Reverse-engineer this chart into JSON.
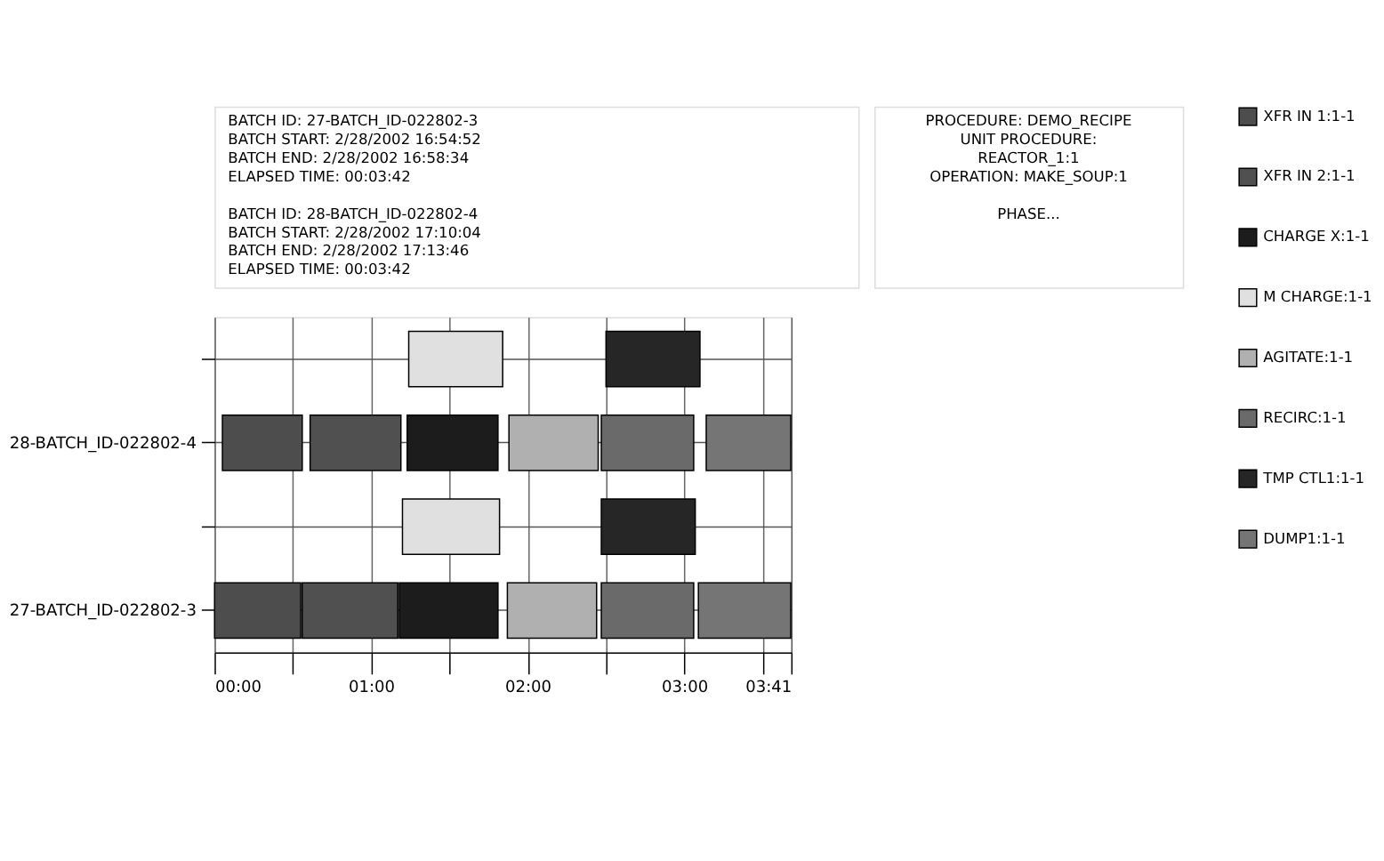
{
  "chart_data": {
    "type": "bar",
    "orientation": "horizontal",
    "grid": true,
    "legend": "right",
    "categories": [
      null,
      "28-BATCH_ID-022802-4",
      null,
      "27-BATCH_ID-022802-3"
    ],
    "xlim": [
      0,
      3.683
    ],
    "xticks": [
      {
        "value": 0,
        "label": "00:00"
      },
      {
        "value": 0.5,
        "label": null
      },
      {
        "value": 1,
        "label": "01:00"
      },
      {
        "value": 1.5,
        "label": null
      },
      {
        "value": 2,
        "label": "02:00"
      },
      {
        "value": 2.5,
        "label": null
      },
      {
        "value": 3,
        "label": "03:00"
      },
      {
        "value": 3.5,
        "label": null
      },
      {
        "value": 3.683,
        "label": "03:41"
      }
    ],
    "annotations": [
      "BATCH ID: 27-BATCH_ID-022802-3\nBATCH START: 2/28/2002 16:54:52\nBATCH END: 2/28/2002 16:58:34\nELAPSED TIME: 00:03:42",
      "BATCH ID: 28-BATCH_ID-022802-4\nBATCH START: 2/28/2002 17:10:04\nBATCH END: 2/28/2002 17:13:46\nELAPSED TIME: 00:03:42",
      "PROCEDURE: DEMO_RECIPE\nUNIT PROCEDURE:\nREACTOR_1:1\nOPERATION: MAKE_SOUP:1\n\nPHASE..."
    ],
    "series": [
      {
        "name": "XFR  IN 1:1-1",
        "color": "#4d4d4d",
        "values": [
          null,
          0.51,
          null,
          0.55
        ],
        "base": [
          null,
          0.05,
          null,
          0
        ]
      },
      {
        "name": "XFR  IN 2:1-1",
        "color": "#505050",
        "values": [
          null,
          0.58,
          null,
          0.61
        ],
        "base": [
          null,
          0.61,
          null,
          0.56
        ]
      },
      {
        "name": "CHARGE  X:1-1",
        "color": "#1c1c1c",
        "values": [
          null,
          0.58,
          null,
          0.63
        ],
        "base": [
          null,
          1.23,
          null,
          1.18
        ]
      },
      {
        "name": "M  CHARGE:1-1",
        "color": "#e0e0e0",
        "values": [
          0.6,
          null,
          0.62,
          null
        ],
        "base": [
          1.24,
          null,
          1.2,
          null
        ]
      },
      {
        "name": "AGITATE:1-1",
        "color": "#b0b0b0",
        "values": [
          null,
          0.57,
          null,
          0.57
        ],
        "base": [
          null,
          1.88,
          null,
          1.87
        ]
      },
      {
        "name": "RECIRC:1-1",
        "color": "#6a6a6a",
        "values": [
          null,
          0.59,
          null,
          0.59
        ],
        "base": [
          null,
          2.47,
          null,
          2.47
        ]
      },
      {
        "name": "TMP  CTL1:1-1",
        "color": "#262626",
        "values": [
          0.6,
          null,
          0.6,
          null
        ],
        "base": [
          2.5,
          null,
          2.47,
          null
        ]
      },
      {
        "name": "DUMP1:1-1",
        "color": "#757575",
        "values": [
          null,
          0.54,
          null,
          0.59
        ],
        "base": [
          null,
          3.14,
          null,
          3.09
        ]
      }
    ]
  }
}
